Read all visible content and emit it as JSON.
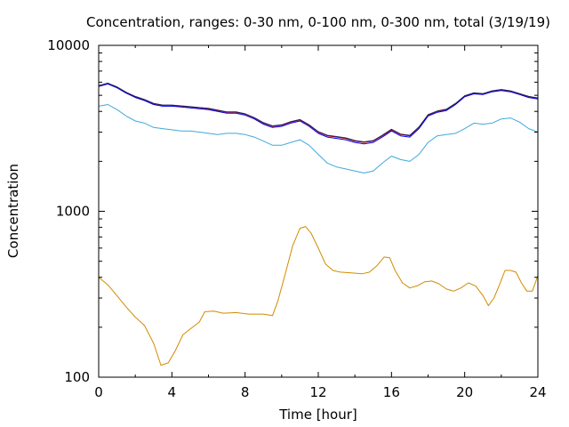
{
  "chart_data": {
    "type": "line",
    "title": "Concentration, ranges: 0-30 nm, 0-100 nm, 0-300 nm, total (3/19/19)",
    "xlabel": "Time [hour]",
    "ylabel": "Concentration",
    "xlim": [
      0,
      24
    ],
    "ylim": [
      100,
      10000
    ],
    "yscale": "log",
    "grid": false,
    "x_ticks": [
      0,
      4,
      8,
      12,
      16,
      20,
      24
    ],
    "x_tick_labels": [
      "0",
      "4",
      "8",
      "12",
      "16",
      "20",
      "24"
    ],
    "y_ticks": [
      100,
      1000,
      10000
    ],
    "y_tick_labels": [
      "100",
      "1000",
      "10000"
    ],
    "series": [
      {
        "color": "#d08c00",
        "x": [
          0,
          0.5,
          1,
          1.5,
          2,
          2.5,
          3,
          3.4,
          3.8,
          4.2,
          4.6,
          5,
          5.5,
          5.8,
          6.3,
          6.8,
          7.5,
          8.2,
          9,
          9.5,
          9.8,
          10.2,
          10.6,
          11,
          11.3,
          11.6,
          12,
          12.4,
          12.8,
          13.2,
          13.8,
          14.4,
          14.8,
          15.2,
          15.6,
          15.9,
          16.2,
          16.6,
          17,
          17.4,
          17.8,
          18.2,
          18.6,
          19,
          19.4,
          19.8,
          20.2,
          20.6,
          21,
          21.3,
          21.6,
          21.9,
          22.2,
          22.5,
          22.8,
          23.1,
          23.4,
          23.7,
          24
        ],
        "y": [
          400,
          360,
          310,
          265,
          230,
          205,
          160,
          118,
          122,
          145,
          180,
          195,
          215,
          248,
          250,
          243,
          245,
          240,
          240,
          235,
          290,
          420,
          620,
          790,
          810,
          740,
          600,
          480,
          440,
          430,
          425,
          420,
          430,
          470,
          530,
          525,
          440,
          370,
          345,
          355,
          375,
          380,
          365,
          340,
          330,
          345,
          370,
          355,
          310,
          270,
          300,
          360,
          440,
          440,
          430,
          370,
          330,
          330,
          410
        ]
      },
      {
        "color": "#3fa9d9",
        "x": [
          0,
          0.5,
          1,
          1.5,
          2,
          2.5,
          3,
          3.5,
          4,
          4.5,
          5,
          5.5,
          6,
          6.5,
          7,
          7.5,
          8,
          8.5,
          9,
          9.5,
          10,
          10.5,
          11,
          11.5,
          12,
          12.5,
          13,
          13.5,
          14,
          14.5,
          15,
          15.5,
          16,
          16.5,
          17,
          17.5,
          18,
          18.5,
          19,
          19.5,
          20,
          20.5,
          21,
          21.5,
          22,
          22.5,
          23,
          23.5,
          24
        ],
        "y": [
          4300,
          4400,
          4100,
          3750,
          3500,
          3400,
          3200,
          3150,
          3100,
          3050,
          3050,
          3000,
          2950,
          2900,
          2950,
          2950,
          2900,
          2800,
          2650,
          2500,
          2500,
          2600,
          2700,
          2500,
          2200,
          1950,
          1850,
          1800,
          1750,
          1700,
          1750,
          1950,
          2150,
          2050,
          2000,
          2200,
          2600,
          2850,
          2900,
          2950,
          3150,
          3400,
          3350,
          3400,
          3600,
          3650,
          3450,
          3150,
          3000
        ]
      },
      {
        "color": "#cc0000",
        "x": [
          0,
          0.5,
          1,
          1.5,
          2,
          2.5,
          3,
          3.5,
          4,
          4.5,
          5,
          5.5,
          6,
          6.5,
          7,
          7.5,
          8,
          8.5,
          9,
          9.5,
          10,
          10.5,
          11,
          11.5,
          12,
          12.5,
          13,
          13.5,
          14,
          14.5,
          15,
          15.5,
          16,
          16.5,
          17,
          17.5,
          18,
          18.5,
          19,
          19.5,
          20,
          20.5,
          21,
          21.5,
          22,
          22.5,
          23,
          23.5,
          24
        ],
        "y": [
          5700,
          5900,
          5600,
          5200,
          4900,
          4700,
          4450,
          4350,
          4350,
          4300,
          4250,
          4200,
          4150,
          4050,
          3950,
          3950,
          3850,
          3650,
          3400,
          3250,
          3300,
          3450,
          3550,
          3300,
          3000,
          2850,
          2800,
          2750,
          2650,
          2600,
          2650,
          2850,
          3100,
          2900,
          2850,
          3200,
          3800,
          4000,
          4100,
          4450,
          4950,
          5150,
          5100,
          5300,
          5400,
          5300,
          5100,
          4900,
          4800
        ]
      },
      {
        "color": "#0000ee",
        "x": [
          0,
          0.5,
          1,
          1.5,
          2,
          2.5,
          3,
          3.5,
          4,
          4.5,
          5,
          5.5,
          6,
          6.5,
          7,
          7.5,
          8,
          8.5,
          9,
          9.5,
          10,
          10.5,
          11,
          11.5,
          12,
          12.5,
          13,
          13.5,
          14,
          14.5,
          15,
          15.5,
          16,
          16.5,
          17,
          17.5,
          18,
          18.5,
          19,
          19.5,
          20,
          20.5,
          21,
          21.5,
          22,
          22.5,
          23,
          23.5,
          24
        ],
        "y": [
          5650,
          5850,
          5550,
          5150,
          4850,
          4650,
          4400,
          4300,
          4300,
          4250,
          4200,
          4150,
          4100,
          4000,
          3900,
          3900,
          3800,
          3600,
          3350,
          3200,
          3250,
          3400,
          3500,
          3250,
          2950,
          2800,
          2750,
          2700,
          2600,
          2550,
          2600,
          2800,
          3050,
          2850,
          2800,
          3150,
          3750,
          3950,
          4050,
          4400,
          4900,
          5100,
          5050,
          5250,
          5350,
          5250,
          5050,
          4850,
          4750
        ]
      },
      {
        "color": "#222255",
        "x": [
          0,
          0.5,
          1,
          1.5,
          2,
          2.5,
          3,
          3.5,
          4,
          4.5,
          5,
          5.5,
          6,
          6.5,
          7,
          7.5,
          8,
          8.5,
          9,
          9.5,
          10,
          10.5,
          11,
          11.5,
          12,
          12.5,
          13,
          13.5,
          14,
          14.5,
          15,
          15.5,
          16,
          16.5,
          17,
          17.5,
          18,
          18.5,
          19,
          19.5,
          20,
          20.5,
          21,
          21.5,
          22,
          22.5,
          23,
          23.5,
          24
        ],
        "y": [
          5720,
          5920,
          5620,
          5220,
          4920,
          4720,
          4470,
          4370,
          4370,
          4320,
          4270,
          4220,
          4170,
          4070,
          3970,
          3970,
          3870,
          3670,
          3420,
          3270,
          3320,
          3470,
          3570,
          3320,
          3020,
          2870,
          2820,
          2770,
          2670,
          2620,
          2670,
          2870,
          3120,
          2920,
          2870,
          3220,
          3820,
          4020,
          4120,
          4470,
          4970,
          5170,
          5120,
          5320,
          5420,
          5320,
          5120,
          4920,
          4820
        ]
      }
    ]
  }
}
